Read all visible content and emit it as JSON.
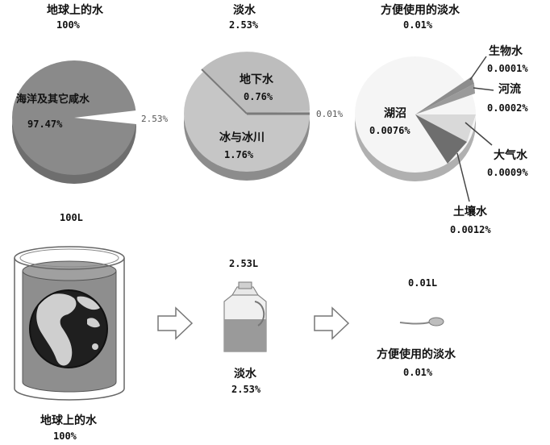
{
  "colors": {
    "dark": "#8a8a8a",
    "mid": "#c4c4c4",
    "light": "#f2f2f2",
    "rim": "#6e6e6e",
    "line": "#444444"
  },
  "pies": [
    {
      "title": "地球上的水",
      "total": "100%",
      "slices": [
        {
          "label": "海洋及其它咸水",
          "value": "97.47%"
        },
        {
          "label": "",
          "value": "2.53%"
        }
      ]
    },
    {
      "title": "淡水",
      "total": "2.53%",
      "slices": [
        {
          "label": "地下水",
          "value": "0.76%"
        },
        {
          "label": "冰与冰川",
          "value": "1.76%"
        },
        {
          "label": "",
          "value": "0.01%"
        }
      ]
    },
    {
      "title": "方便使用的淡水",
      "total": "0.01%",
      "slices": [
        {
          "label": "湖沼",
          "value": "0.0076%"
        },
        {
          "label": "生物水",
          "value": "0.0001%"
        },
        {
          "label": "河流",
          "value": "0.0002%"
        },
        {
          "label": "大气水",
          "value": "0.0009%"
        },
        {
          "label": "土壤水",
          "value": "0.0012%"
        }
      ]
    }
  ],
  "bottom": {
    "earth": {
      "volume": "100L",
      "label": "地球上的水",
      "pct": "100%"
    },
    "jug": {
      "volume": "2.53L",
      "label": "淡水",
      "pct": "2.53%"
    },
    "spoon": {
      "volume": "0.01L",
      "label": "方便使用的淡水",
      "pct": "0.01%"
    }
  },
  "icons": [
    "earth-globe-icon",
    "water-jug-icon",
    "spoon-icon",
    "arrow-right-icon"
  ]
}
